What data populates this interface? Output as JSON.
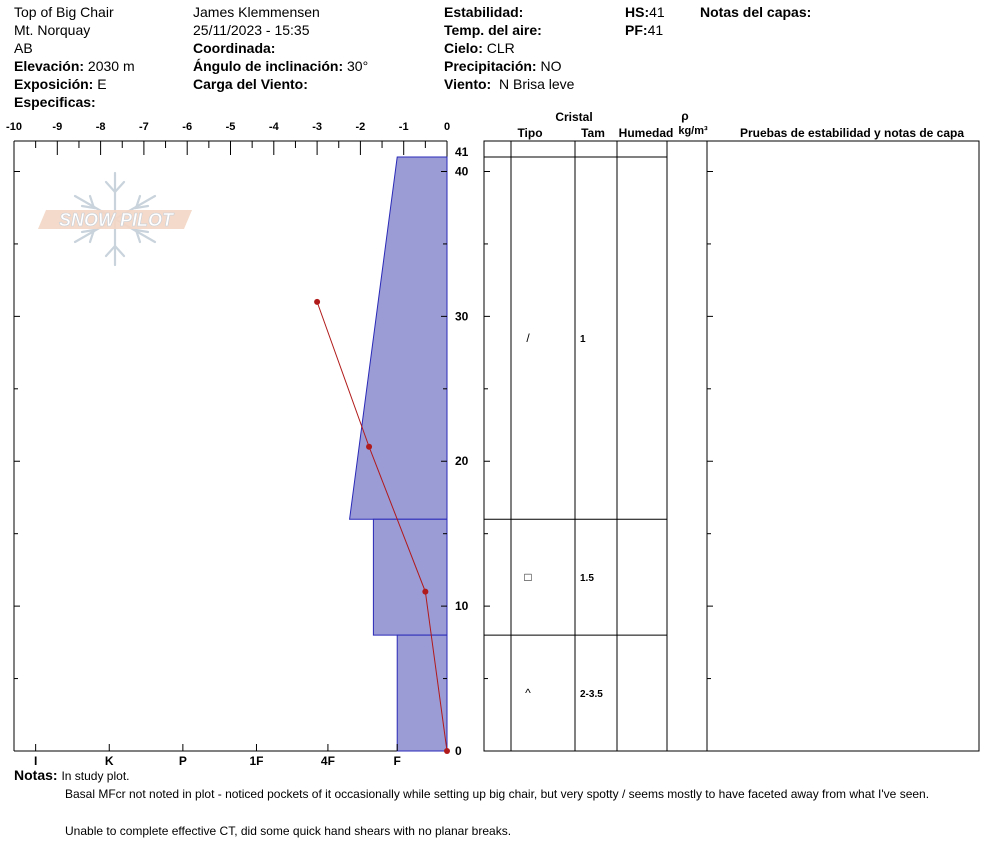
{
  "header": {
    "location": "Top of Big Chair",
    "area": "Mt. Norquay",
    "region": "AB",
    "observer": "James Klemmensen",
    "datetime": "25/11/2023 - 15:35",
    "elevation_label": "Elevación:",
    "elevation_value": "2030 m",
    "exposure_label": "Exposición:",
    "exposure_value": "E",
    "specifics_label": "Especificas:",
    "coordinate_label": "Coordinada:",
    "slope_label": "Ángulo de inclinación:",
    "slope_value": "30°",
    "wind_load_label": "Carga del Viento:",
    "stability_label": "Estabilidad:",
    "air_temp_label": "Temp. del aire:",
    "sky_label": "Cielo:",
    "sky_value": "CLR",
    "precip_label": "Precipitación:",
    "precip_value": "NO",
    "wind_label": "Viento:",
    "wind_value": "N Brisa leve",
    "hs_label": "HS:",
    "hs_value": "41",
    "pf_label": "PF:",
    "pf_value": "41",
    "layer_notes_label": "Notas del capas:"
  },
  "logo_text": "SNOW PILOT",
  "table": {
    "crystal_header": "Cristal",
    "type_header": "Tipo",
    "size_header": "Tam",
    "moisture_header": "Humedad",
    "density_symbol": "ρ",
    "density_unit": "kg/m³",
    "tests_header": "Pruebas de estabilidad y notas de capa"
  },
  "layers": [
    {
      "top": 41,
      "bottom": 16,
      "hardness": "4F+",
      "hardness_index": -2.25,
      "crystal_symbol": "/",
      "size": "1"
    },
    {
      "top": 16,
      "bottom": 8,
      "hardness": "4F-",
      "hardness_index": -1.7,
      "crystal_symbol": "□",
      "size": "1.5"
    },
    {
      "top": 8,
      "bottom": 0,
      "hardness": "F",
      "hardness_index": -1.15,
      "crystal_symbol": "^",
      "size": "2-3.5"
    }
  ],
  "chart_data": {
    "type": "line",
    "description_series": "temperature profile",
    "x_label_top": "",
    "x_ticks_top": [
      "-10",
      "-9",
      "-8",
      "-7",
      "-6",
      "-5",
      "-4",
      "-3",
      "-2",
      "-1",
      "0"
    ],
    "x_range": [
      -10,
      0
    ],
    "y_range": [
      0,
      41
    ],
    "y_ticks": [
      "0",
      "10",
      "20",
      "30",
      "40",
      "41"
    ],
    "hardness_ticks": [
      "I",
      "K",
      "P",
      "1F",
      "4F",
      "F"
    ],
    "temperature_points": [
      {
        "depth": 31,
        "temp": -3.0
      },
      {
        "depth": 21,
        "temp": -1.8
      },
      {
        "depth": 11,
        "temp": -0.5
      },
      {
        "depth": 0,
        "temp": 0.0
      }
    ],
    "colors": {
      "layer_fill": "#9b9bd6",
      "layer_stroke": "#2a2ab8",
      "temp_line": "#b11a1a"
    }
  },
  "notes": {
    "label": "Notas:",
    "line1": "In study plot.",
    "line2": "Basal MFcr not noted in plot - noticed pockets of it occasionally while setting up big chair, but very spotty / seems mostly to have faceted away from what I've seen.",
    "line3": "Unable to complete effective CT, did some quick hand shears with no planar breaks."
  }
}
